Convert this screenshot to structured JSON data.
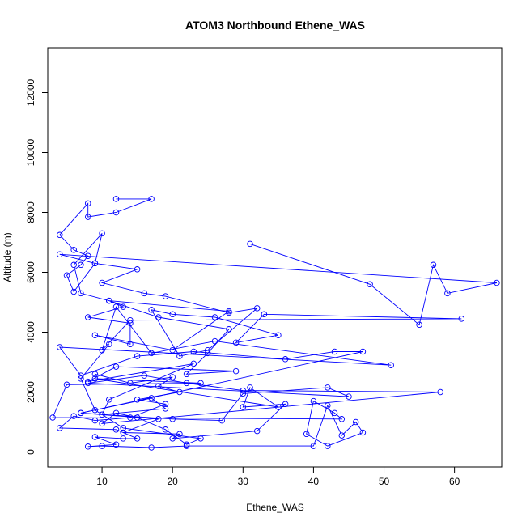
{
  "chart_data": {
    "type": "line",
    "title": "ATOM3 Northbound Ethene_WAS",
    "xlabel": "Ethene_WAS",
    "ylabel": "Altitude (m)",
    "xlim": [
      2.3,
      66.7
    ],
    "ylim": [
      -500,
      13500
    ],
    "xticks": [
      "10",
      "20",
      "30",
      "40",
      "50",
      "60"
    ],
    "yticks": [
      "0",
      "2000",
      "4000",
      "6000",
      "8000",
      "10000",
      "12000"
    ],
    "grid": false,
    "legend": "none",
    "series_color": "#0000FF",
    "series": [
      {
        "x": [
          12,
          17,
          12,
          8,
          8,
          4,
          6,
          8,
          7,
          5,
          6,
          9,
          10,
          6,
          7,
          11,
          13,
          8,
          14,
          14,
          9,
          20,
          28,
          11,
          18,
          28,
          25,
          22,
          29,
          12,
          8,
          23,
          11,
          10,
          19,
          17,
          7,
          18,
          13,
          21,
          20,
          32,
          36,
          30,
          31,
          35,
          9,
          24,
          5,
          3,
          44,
          43,
          40,
          39,
          42,
          47,
          46,
          44,
          42,
          40,
          22,
          17,
          10,
          8,
          12,
          9,
          13,
          15,
          12,
          4,
          6,
          9,
          14,
          19,
          15,
          21,
          18,
          20,
          14,
          9
        ],
        "y": [
          8450,
          8450,
          8000,
          7850,
          8300,
          7250,
          6750,
          6550,
          6250,
          5900,
          5350,
          6300,
          7300,
          6250,
          5300,
          5050,
          4850,
          4500,
          4300,
          3600,
          3900,
          3400,
          4700,
          5050,
          4500,
          4100,
          3300,
          2600,
          2700,
          2850,
          2350,
          2950,
          1750,
          1250,
          1450,
          1800,
          1300,
          1100,
          650,
          600,
          450,
          700,
          1600,
          1500,
          2150,
          1500,
          2450,
          2300,
          2250,
          1150,
          1100,
          1300,
          1700,
          600,
          200,
          650,
          1000,
          550,
          1550,
          200,
          200,
          150,
          200,
          180,
          250,
          500,
          450,
          450,
          750,
          800,
          1200,
          1050,
          1150,
          1600,
          1750,
          2000,
          2200,
          2500,
          2300,
          2600
        ]
      },
      {
        "x": [
          31,
          48,
          55,
          57,
          59,
          66,
          4,
          9,
          15,
          10,
          16,
          19,
          28,
          32,
          25,
          21,
          17,
          20,
          26,
          35,
          29,
          33,
          61,
          14,
          10,
          12,
          17,
          26,
          51,
          4,
          7,
          15,
          23,
          36,
          43,
          47,
          7,
          20,
          27,
          30,
          42,
          45,
          8,
          16,
          22,
          30,
          58,
          10,
          12,
          15,
          19,
          22,
          24,
          13,
          9,
          7,
          11
        ],
        "y": [
          6950,
          5600,
          4250,
          6250,
          5300,
          5650,
          6600,
          6300,
          6100,
          5650,
          5300,
          5200,
          4650,
          4800,
          3400,
          3200,
          4750,
          4600,
          4500,
          3900,
          3650,
          4600,
          4450,
          4400,
          3400,
          4850,
          3300,
          3700,
          2900,
          3500,
          2550,
          3200,
          3350,
          3100,
          3350,
          3350,
          1300,
          1100,
          1050,
          1950,
          2150,
          1850,
          2300,
          2550,
          2300,
          2050,
          2000,
          950,
          1300,
          1150,
          750,
          250,
          450,
          800,
          1400,
          2450,
          3600
        ]
      }
    ]
  }
}
